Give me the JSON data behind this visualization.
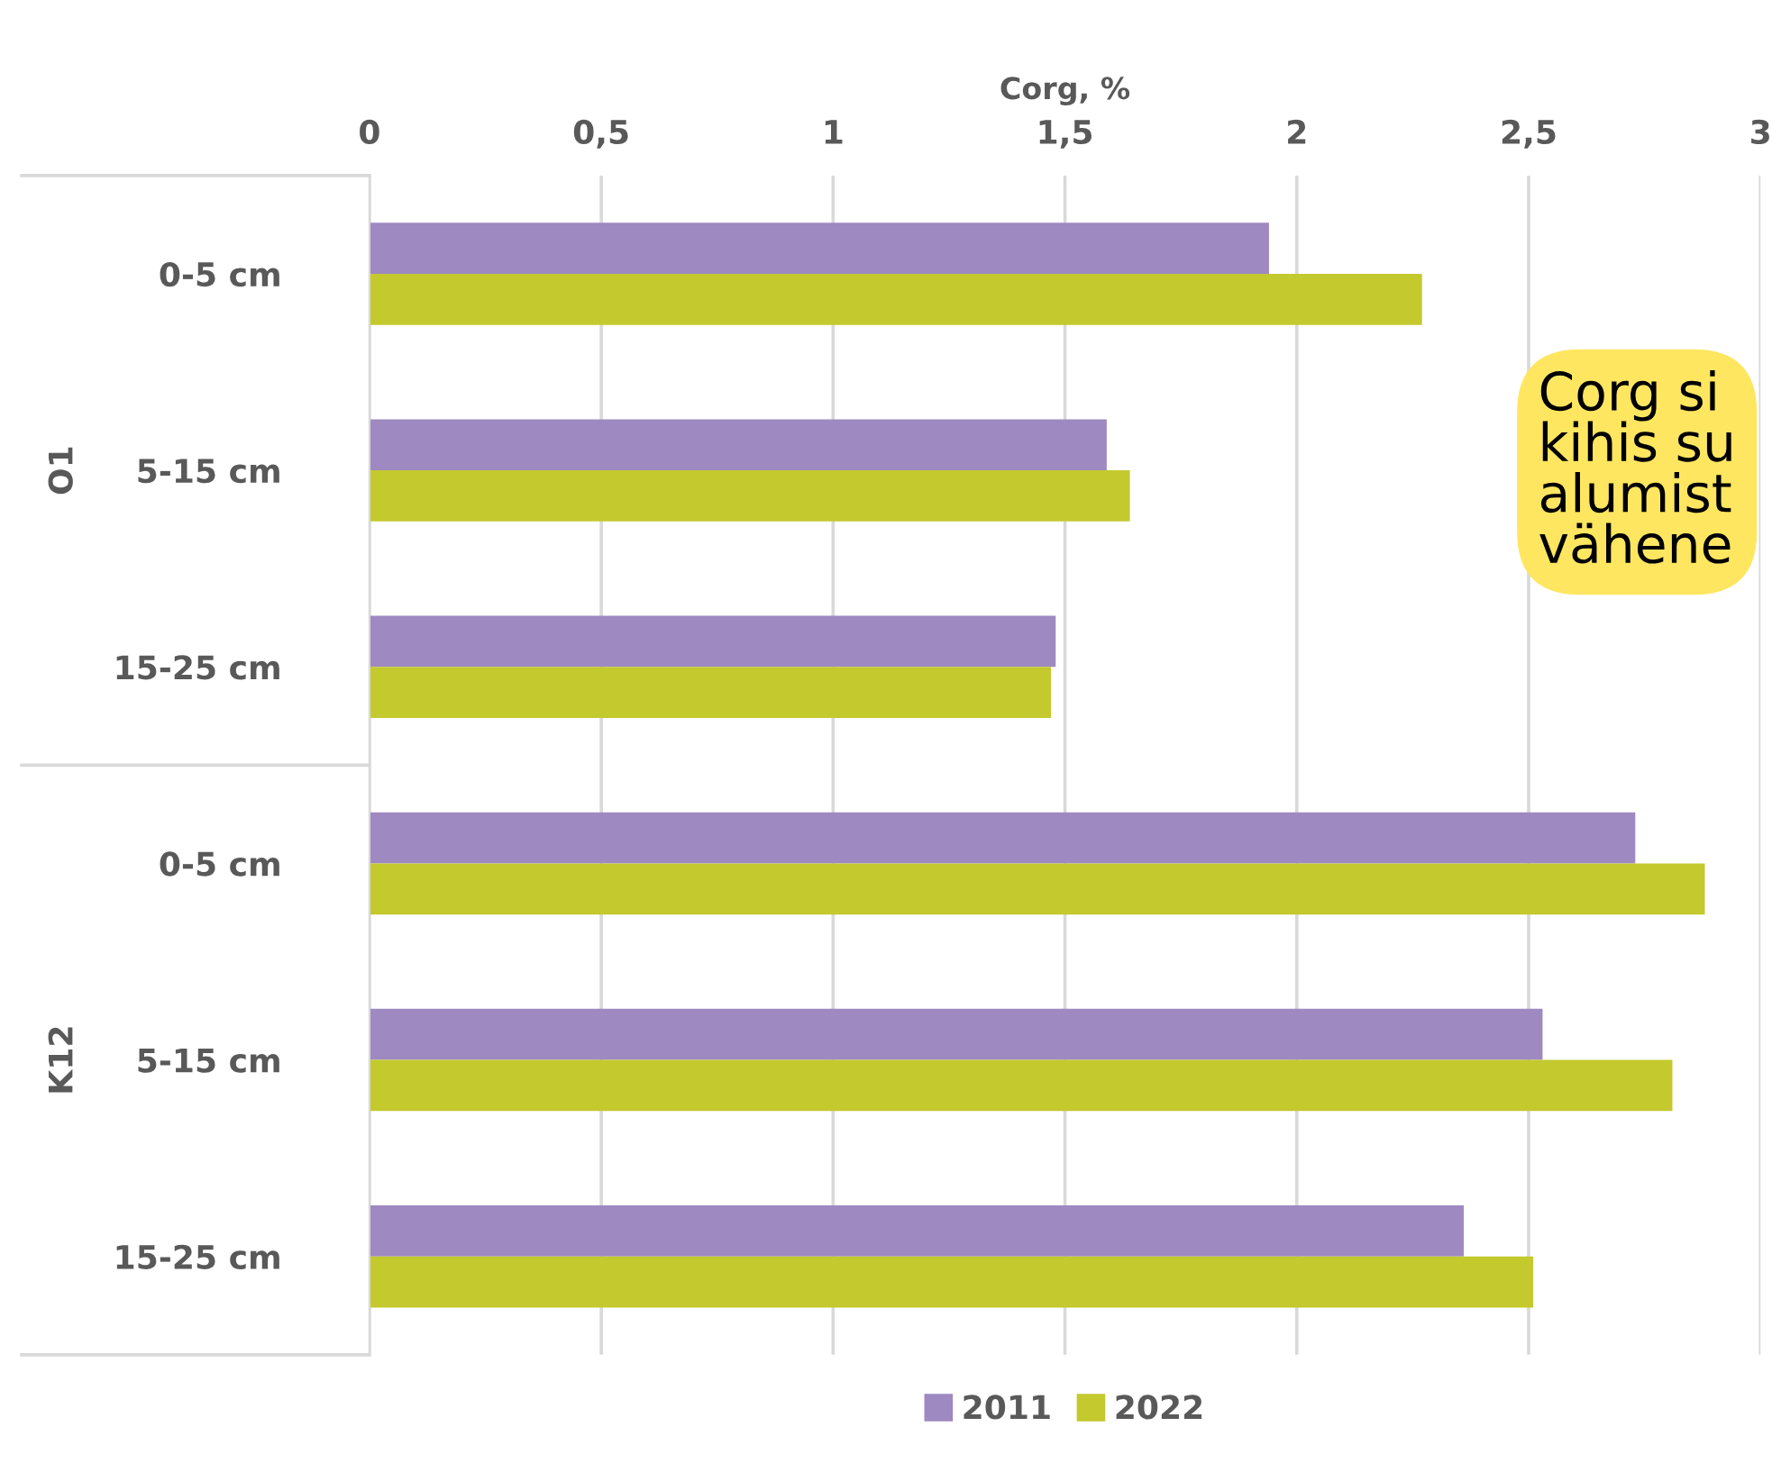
{
  "chart_data": {
    "type": "bar",
    "orientation": "horizontal",
    "xlabel": "Corg, %",
    "categories": [
      "0-5 cm",
      "5-15 cm",
      "15-25 cm",
      "0-5 cm",
      "5-15 cm",
      "15-25 cm"
    ],
    "series": [
      {
        "name": "2011",
        "color": "#9e89c0",
        "values": [
          1.94,
          1.59,
          1.48,
          2.73,
          2.53,
          2.36
        ]
      },
      {
        "name": "2022",
        "color": "#c4c92e",
        "values": [
          2.27,
          1.64,
          1.47,
          2.88,
          2.81,
          2.51
        ]
      }
    ],
    "xlim": [
      0,
      3
    ],
    "xticks": [
      {
        "value": 0,
        "label": "0"
      },
      {
        "value": 0.5,
        "label": "0,5"
      },
      {
        "value": 1,
        "label": "1"
      },
      {
        "value": 1.5,
        "label": "1,5"
      },
      {
        "value": 2,
        "label": "2"
      },
      {
        "value": 2.5,
        "label": "2,5"
      },
      {
        "value": 3,
        "label": "3"
      }
    ],
    "grid": "x",
    "legend": "bottom",
    "annotations": [
      "O1",
      "K12",
      "Corg si\nkihis su\nalumist\nvähene"
    ]
  }
}
